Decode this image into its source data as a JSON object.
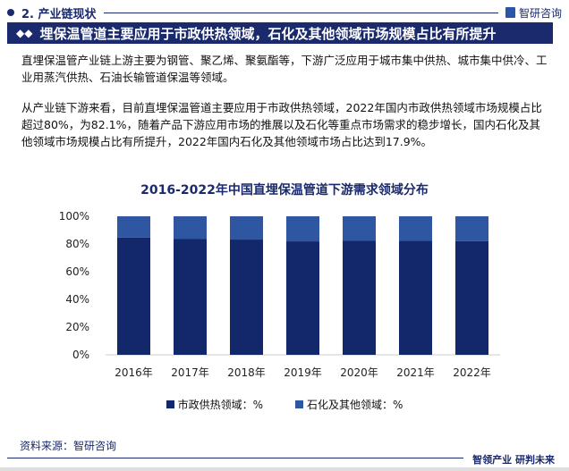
{
  "header": {
    "section": "2. 产业链现状",
    "brand": "智研咨询"
  },
  "title_bar": "埋保温管道主要应用于市政供热领域，石化及其他领域市场规模占比有所提升",
  "paragraphs": [
    "直埋保温管产业链上游主要为钢管、聚乙烯、聚氨酯等，下游广泛应用于城市集中供热、城市集中供冷、工业用蒸汽供热、石油长输管道保温等领域。",
    "从产业链下游来看，目前直埋保温管道主要应用于市政供热领域，2022年国内市政供热领域市场规模占比超过80%，为82.1%，随着产品下游应用市场的推展以及石化等重点市场需求的稳步增长，国内石化及其他领域市场规模占比有所提升，2022年国内石化及其他领域市场占比达到17.9%。"
  ],
  "chart_data": {
    "type": "bar",
    "stacked": true,
    "title": "2016-2022年中国直埋保温管道下游需求领域分布",
    "categories": [
      "2016年",
      "2017年",
      "2018年",
      "2019年",
      "2020年",
      "2021年",
      "2022年"
    ],
    "series": [
      {
        "name": "市政供热领域：%",
        "color": "#12286a",
        "values": [
          84.7,
          83.8,
          83.2,
          81.9,
          82.5,
          82.3,
          82.1
        ]
      },
      {
        "name": "石化及其他领域：%",
        "color": "#2f56a0",
        "values": [
          15.3,
          16.2,
          16.8,
          18.1,
          17.5,
          17.7,
          17.9
        ]
      }
    ],
    "yticks": [
      "0%",
      "20%",
      "40%",
      "60%",
      "80%",
      "100%"
    ],
    "ylim": [
      0,
      100
    ],
    "legend": "bottom"
  },
  "footer": {
    "source": "资料来源：智研咨询",
    "slogan": "智领产业 研判未来"
  }
}
